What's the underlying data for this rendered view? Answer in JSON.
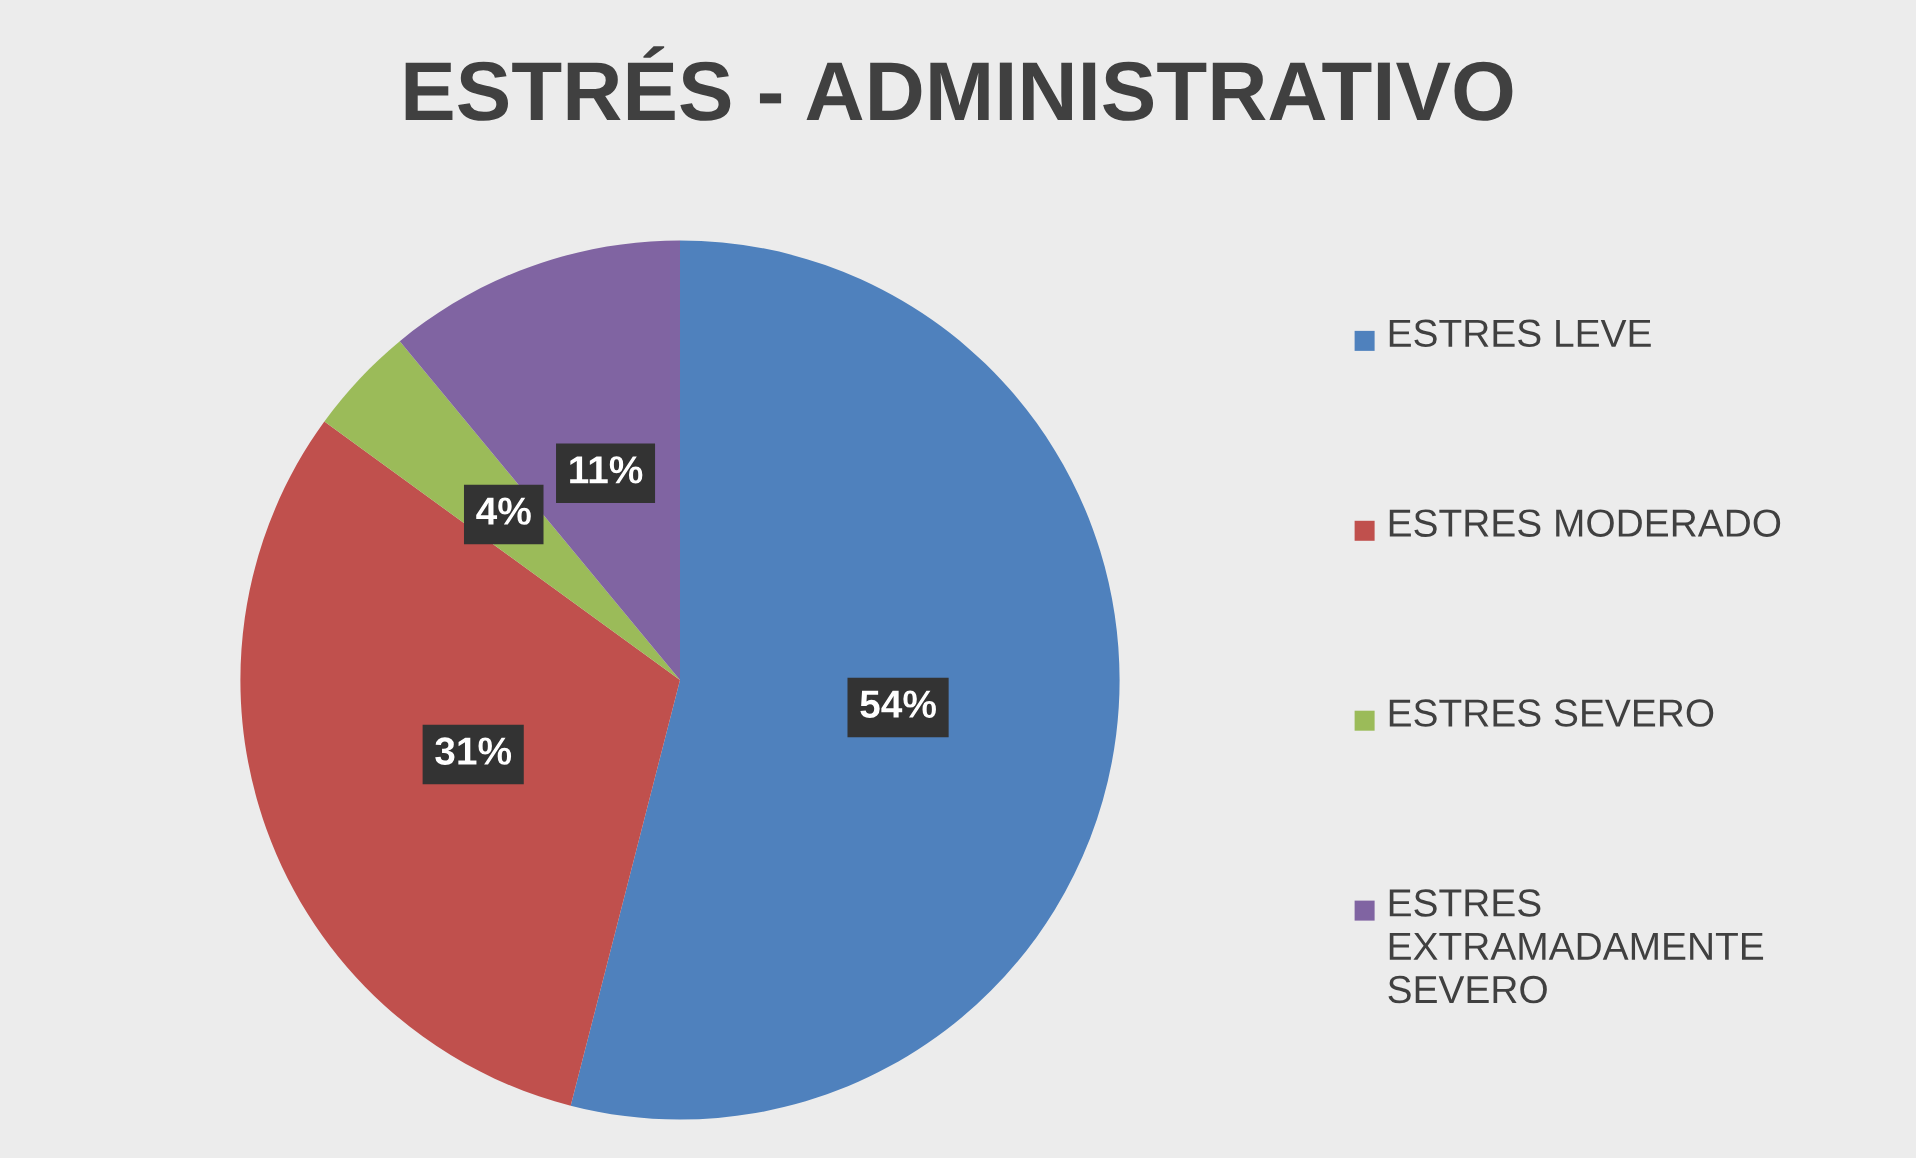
{
  "chart_data": {
    "type": "pie",
    "title": "ESTRÉS - ADMINISTRATIVO",
    "categories": [
      "ESTRES LEVE",
      "ESTRES MODERADO",
      "ESTRES SEVERO",
      "ESTRES EXTRAMADAMENTE SEVERO"
    ],
    "values": [
      54,
      31,
      4,
      11
    ],
    "colors": [
      "#4f81bd",
      "#c0504d",
      "#9bbb59",
      "#8064a2"
    ],
    "value_labels": [
      "54%",
      "31%",
      "4%",
      "11%"
    ],
    "legend": "right"
  }
}
